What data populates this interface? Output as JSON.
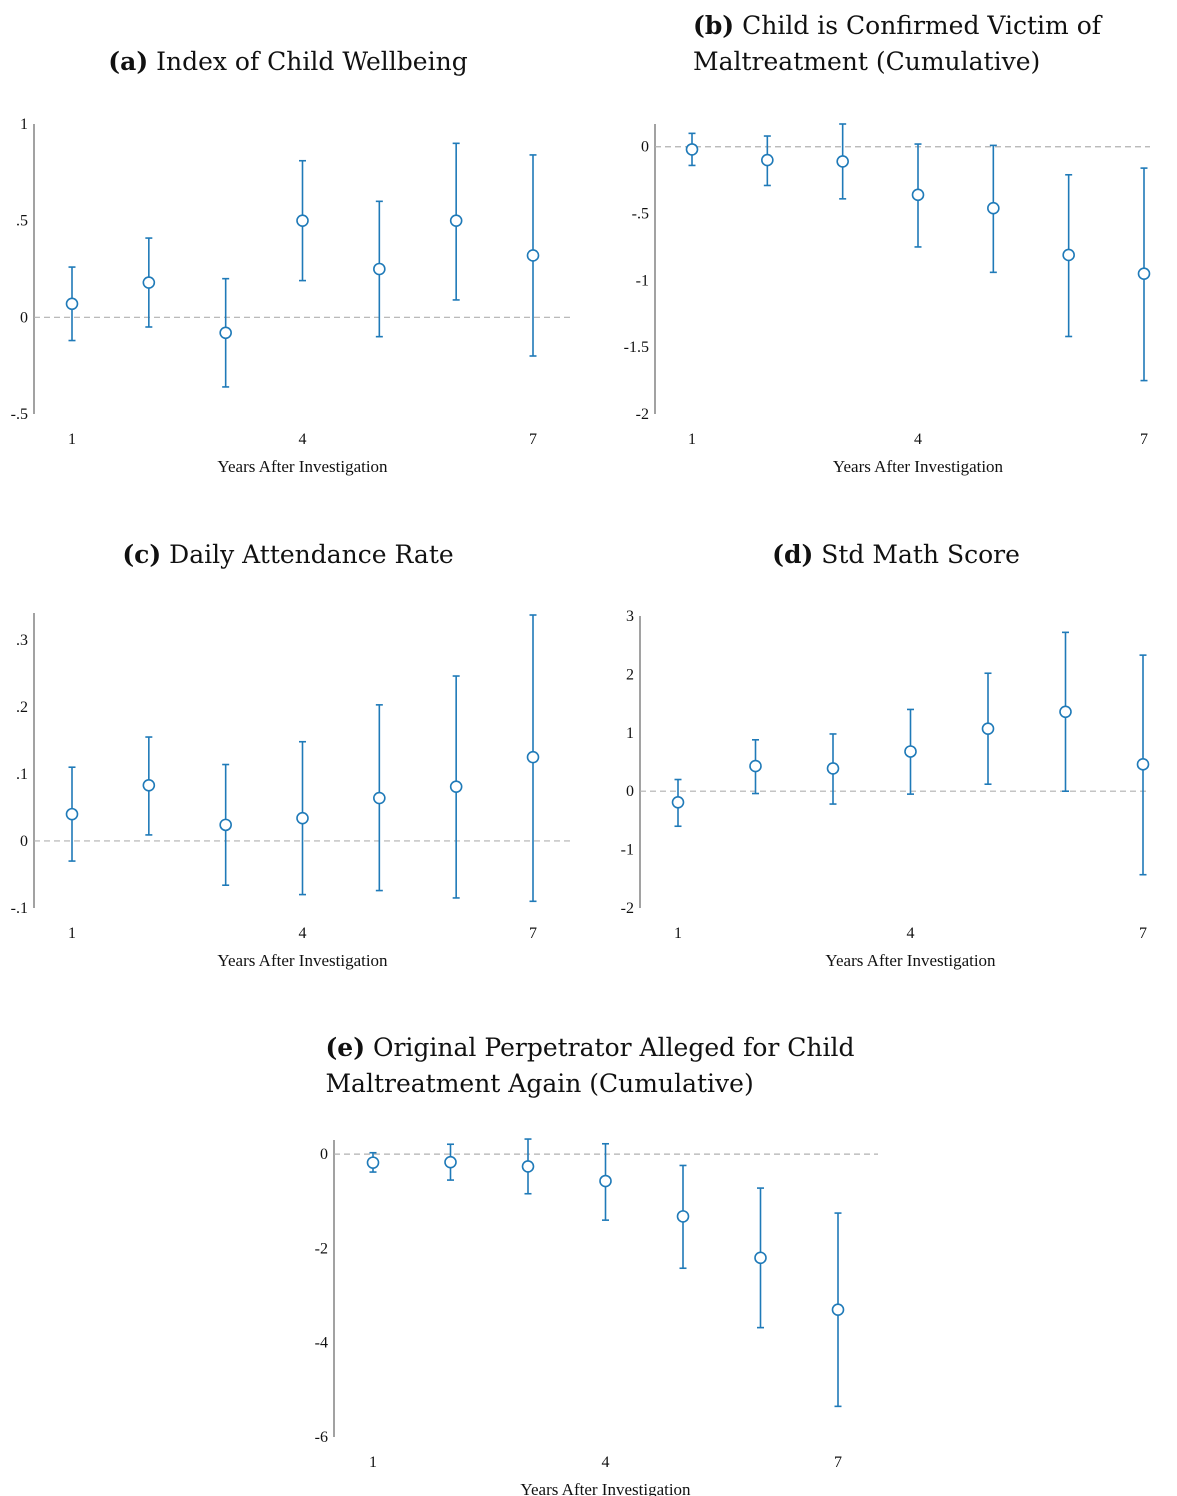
{
  "colors": {
    "marker": "#1f7ab8",
    "zero_line": "#b0b0b0",
    "axis": "#444444",
    "text": "#111111"
  },
  "chart_data": [
    {
      "id": "a",
      "type": "scatter",
      "panel_label": "(a)",
      "title_lines": [
        "Index of Child Wellbeing"
      ],
      "xlabel": "Years After Investigation",
      "xticks": [
        "1",
        "4",
        "7"
      ],
      "ytick_values": [
        1,
        0.5,
        0,
        -0.5
      ],
      "ytick_labels": [
        "1",
        ".5",
        "0",
        "-.5"
      ],
      "ylim": [
        -0.5,
        1
      ],
      "x": [
        1,
        2,
        3,
        4,
        5,
        6,
        7
      ],
      "y": [
        0.07,
        0.18,
        -0.08,
        0.5,
        0.25,
        0.5,
        0.32
      ],
      "ci_low": [
        -0.12,
        -0.05,
        -0.36,
        0.19,
        -0.1,
        0.09,
        -0.2
      ],
      "ci_high": [
        0.26,
        0.41,
        0.2,
        0.81,
        0.6,
        0.9,
        0.84
      ]
    },
    {
      "id": "b",
      "type": "scatter",
      "panel_label": "(b)",
      "title_lines": [
        "Child is Confirmed Victim of",
        "Maltreatment (Cumulative)"
      ],
      "xlabel": "Years After Investigation",
      "xticks": [
        "1",
        "4",
        "7"
      ],
      "ytick_values": [
        0,
        -0.5,
        -1,
        -1.5,
        -2
      ],
      "ytick_labels": [
        "0",
        "-.5",
        "-1",
        "-1.5",
        "-2"
      ],
      "ylim": [
        -2,
        0.17
      ],
      "x": [
        1,
        2,
        3,
        4,
        5,
        6,
        7
      ],
      "y": [
        -0.02,
        -0.1,
        -0.11,
        -0.36,
        -0.46,
        -0.81,
        -0.95
      ],
      "ci_low": [
        -0.14,
        -0.29,
        -0.39,
        -0.75,
        -0.94,
        -1.42,
        -1.75
      ],
      "ci_high": [
        0.1,
        0.08,
        0.17,
        0.02,
        0.01,
        -0.21,
        -0.16
      ]
    },
    {
      "id": "c",
      "type": "scatter",
      "panel_label": "(c)",
      "title_lines": [
        "Daily Attendance Rate"
      ],
      "xlabel": "Years After Investigation",
      "xticks": [
        "1",
        "4",
        "7"
      ],
      "ytick_values": [
        0.3,
        0.2,
        0.1,
        0,
        -0.1
      ],
      "ytick_labels": [
        ".3",
        ".2",
        ".1",
        "0",
        "-.1"
      ],
      "ylim": [
        -0.1,
        0.34
      ],
      "x": [
        1,
        2,
        3,
        4,
        5,
        6,
        7
      ],
      "y": [
        0.04,
        0.083,
        0.024,
        0.034,
        0.064,
        0.081,
        0.125
      ],
      "ci_low": [
        -0.03,
        0.009,
        -0.066,
        -0.08,
        -0.074,
        -0.085,
        -0.09
      ],
      "ci_high": [
        0.11,
        0.155,
        0.114,
        0.148,
        0.203,
        0.246,
        0.337
      ]
    },
    {
      "id": "d",
      "type": "scatter",
      "panel_label": "(d)",
      "title_lines": [
        "Std Math Score"
      ],
      "xlabel": "Years After Investigation",
      "xticks": [
        "1",
        "4",
        "7"
      ],
      "ytick_values": [
        3,
        2,
        1,
        0,
        -1,
        -2
      ],
      "ytick_labels": [
        "3",
        "2",
        "1",
        "0",
        "-1",
        "-2"
      ],
      "ylim": [
        -2,
        3
      ],
      "x": [
        1,
        2,
        3,
        4,
        5,
        6,
        7
      ],
      "y": [
        -0.19,
        0.43,
        0.39,
        0.68,
        1.07,
        1.36,
        0.46
      ],
      "ci_low": [
        -0.6,
        -0.04,
        -0.22,
        -0.05,
        0.12,
        0.0,
        -1.43
      ],
      "ci_high": [
        0.2,
        0.88,
        0.98,
        1.4,
        2.02,
        2.72,
        2.33
      ]
    },
    {
      "id": "e",
      "type": "scatter",
      "panel_label": "(e)",
      "title_lines": [
        "Original Perpetrator Alleged for Child",
        "Maltreatment Again (Cumulative)"
      ],
      "xlabel": "Years After Investigation",
      "xticks": [
        "1",
        "4",
        "7"
      ],
      "ytick_values": [
        0,
        -2,
        -4,
        -6
      ],
      "ytick_labels": [
        "0",
        "-2",
        "-4",
        "-6"
      ],
      "ylim": [
        -6,
        0.3
      ],
      "x": [
        1,
        2,
        3,
        4,
        5,
        6,
        7
      ],
      "y": [
        -0.18,
        -0.17,
        -0.26,
        -0.57,
        -1.32,
        -2.2,
        -3.3
      ],
      "ci_low": [
        -0.38,
        -0.55,
        -0.84,
        -1.4,
        -2.42,
        -3.68,
        -5.35
      ],
      "ci_high": [
        0.03,
        0.21,
        0.32,
        0.22,
        -0.24,
        -0.72,
        -1.25
      ]
    }
  ]
}
